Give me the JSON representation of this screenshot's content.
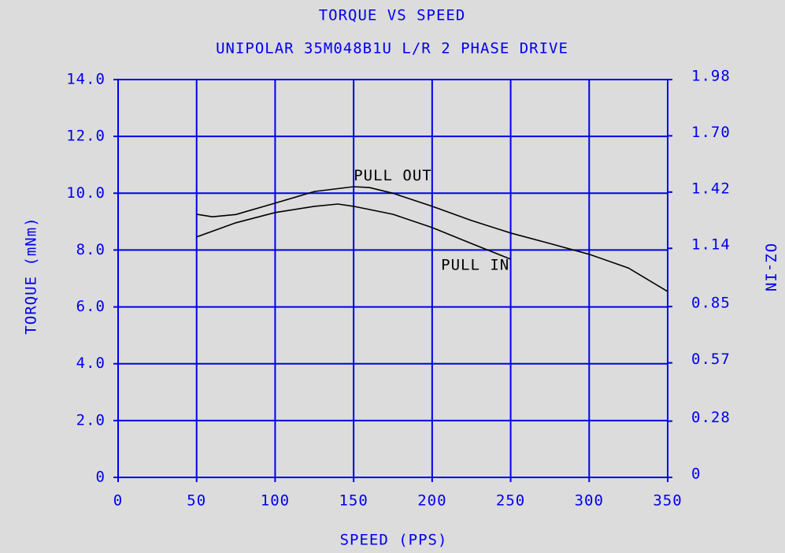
{
  "chart_data": {
    "type": "line",
    "title": "TORQUE VS SPEED",
    "subtitle": "UNIPOLAR 35M048B1U L/R 2 PHASE DRIVE",
    "x_label": "SPEED (PPS)",
    "y_label": "TORQUE (mNm)",
    "y2_label": "OZ-IN",
    "xlim": [
      0,
      350
    ],
    "xticks": [
      0,
      50,
      100,
      150,
      200,
      250,
      300,
      350
    ],
    "ylim": [
      0,
      14
    ],
    "yticks": [
      0,
      {
        "value": 2,
        "label": "2.0"
      },
      {
        "value": 4,
        "label": "4.0"
      },
      {
        "value": 6,
        "label": "6.0"
      },
      {
        "value": 8,
        "label": "8.0"
      },
      {
        "value": 10,
        "label": "10.0"
      },
      {
        "value": 12,
        "label": "12.0"
      },
      {
        "value": 14,
        "label": "14.0"
      }
    ],
    "y2lim": [
      0,
      1.98
    ],
    "y2ticks": [
      0,
      0.28,
      0.57,
      0.85,
      1.14,
      1.42,
      {
        "value": 1.7,
        "label": "1.70"
      },
      1.98
    ],
    "grid": true,
    "series": [
      {
        "name": "PULL OUT",
        "color": "#000000",
        "x": [
          50,
          60,
          75,
          100,
          125,
          150,
          160,
          175,
          200,
          225,
          250,
          275,
          300,
          325,
          350
        ],
        "values": [
          9.26,
          9.17,
          9.25,
          9.65,
          10.06,
          10.23,
          10.2,
          10.0,
          9.54,
          9.04,
          8.6,
          8.23,
          7.85,
          7.37,
          6.54
        ]
      },
      {
        "name": "PULL IN",
        "color": "#000000",
        "x": [
          50,
          75,
          100,
          125,
          140,
          150,
          175,
          200,
          225,
          250
        ],
        "values": [
          8.46,
          8.96,
          9.32,
          9.54,
          9.62,
          9.54,
          9.26,
          8.79,
          8.23,
          7.68
        ]
      }
    ]
  }
}
